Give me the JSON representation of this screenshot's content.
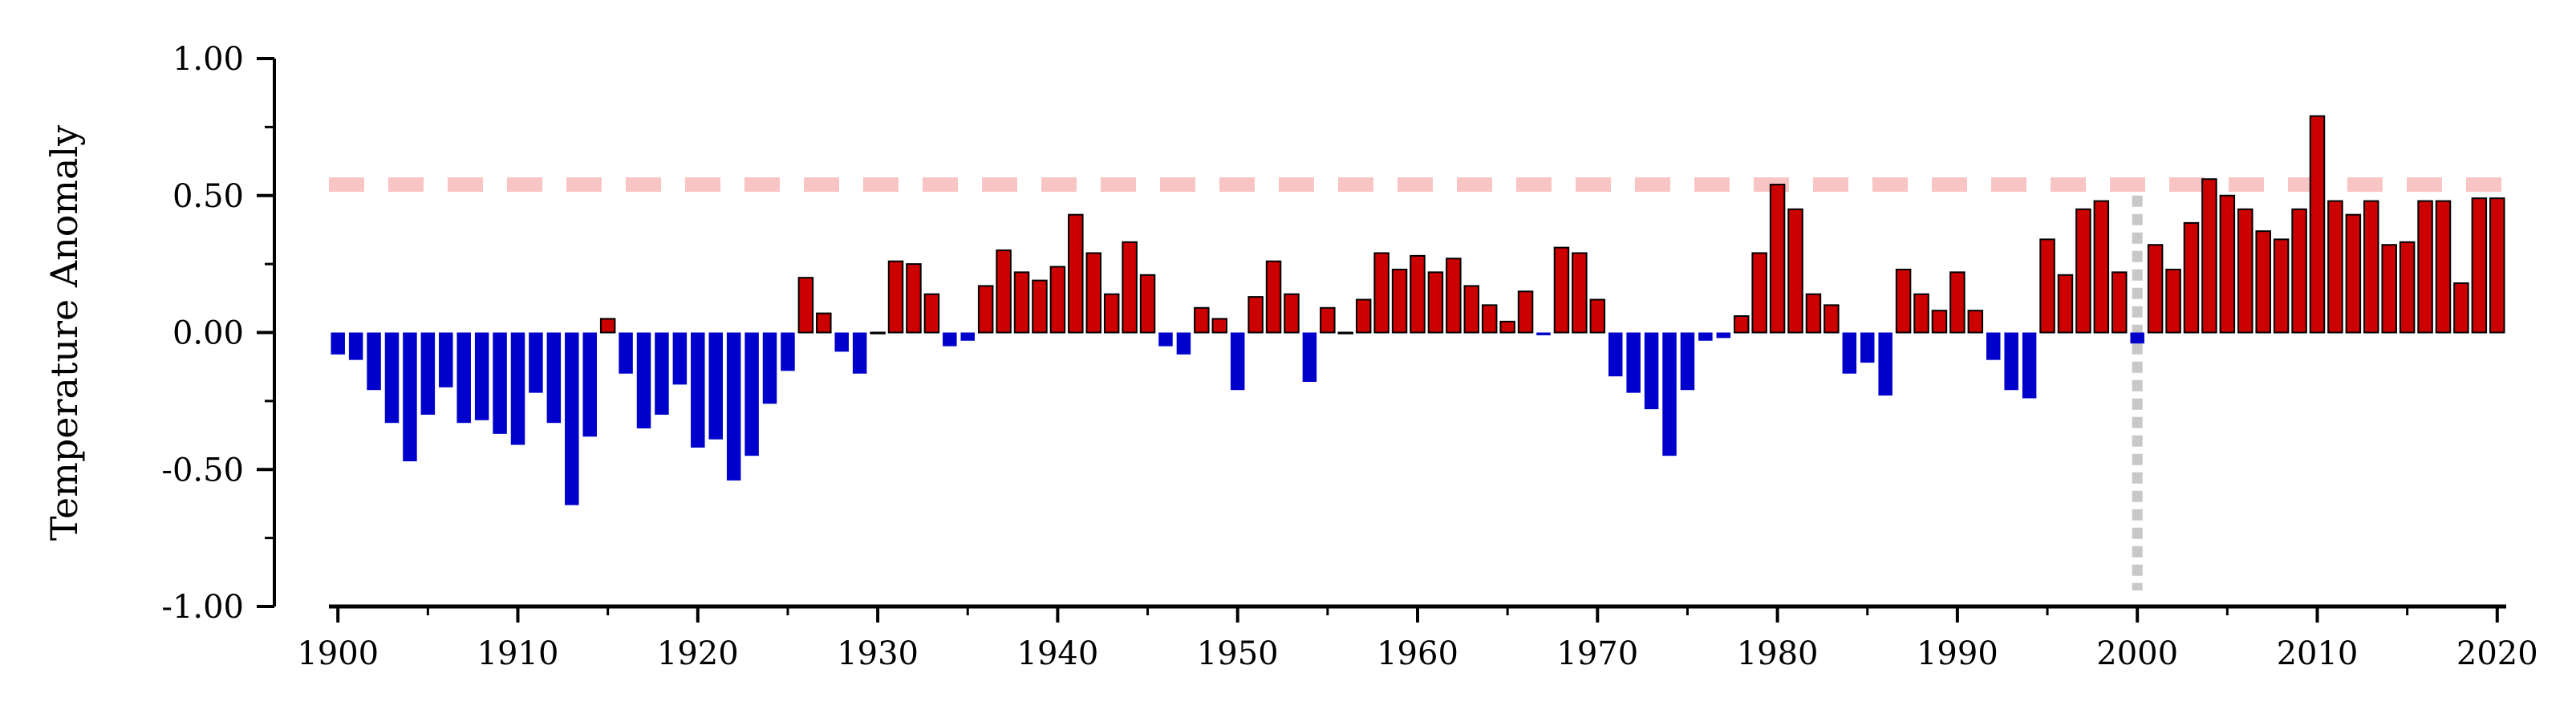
{
  "chart_data": {
    "type": "bar",
    "title": "",
    "xlabel": "",
    "ylabel": "Temperature Anomaly",
    "x_ticks": [
      1900,
      1910,
      1920,
      1930,
      1940,
      1950,
      1960,
      1970,
      1980,
      1990,
      2000,
      2010,
      2020
    ],
    "y_ticks": [
      "1.00",
      "0.50",
      "0.00",
      "-0.50",
      "-1.00"
    ],
    "ylim": [
      -1.0,
      1.0
    ],
    "xlim": [
      1899.5,
      2020.5
    ],
    "grid": false,
    "colors": {
      "positive": "#cc0000",
      "negative": "#0000cc",
      "reference_line": "#f9c4c4",
      "marker_line": "#c8c8c8"
    },
    "reference_line_value": 0.54,
    "vertical_marker_year": 2000,
    "series": [
      {
        "start_year": 1900,
        "values": [
          -0.08,
          -0.1,
          -0.21,
          -0.33,
          -0.47,
          -0.3,
          -0.2,
          -0.33,
          -0.32,
          -0.37,
          -0.41,
          -0.22,
          -0.33,
          -0.63,
          -0.38,
          0.05,
          -0.15,
          -0.35,
          -0.3,
          -0.19,
          -0.42,
          -0.39,
          -0.54,
          -0.45,
          -0.26,
          -0.14,
          0.2,
          0.07,
          -0.07,
          -0.15,
          0.0,
          0.26,
          0.25,
          0.14,
          -0.05,
          -0.03,
          0.17,
          0.3,
          0.22,
          0.19,
          0.24,
          0.43,
          0.29,
          0.14,
          0.33,
          0.21,
          -0.05,
          -0.08,
          0.09,
          0.05,
          -0.21,
          0.13,
          0.26,
          0.14,
          -0.18,
          0.09,
          0.0,
          0.12,
          0.29,
          0.23,
          0.28,
          0.22,
          0.27,
          0.17,
          0.1,
          0.04,
          0.15,
          -0.01,
          0.31,
          0.29,
          0.12,
          -0.16,
          -0.22,
          -0.28,
          -0.45,
          -0.21,
          -0.03,
          -0.02,
          0.06,
          0.29,
          0.54,
          0.45,
          0.14,
          0.1,
          -0.15,
          -0.11,
          -0.23,
          0.23,
          0.14,
          0.08,
          0.22,
          0.08,
          -0.1,
          -0.21,
          -0.24,
          0.34,
          0.21,
          0.45,
          0.48,
          0.22,
          -0.04,
          0.32,
          0.23,
          0.4,
          0.56,
          0.5,
          0.45,
          0.37,
          0.34,
          0.45,
          0.79,
          0.48,
          0.43,
          0.48,
          0.32,
          0.33,
          0.48,
          0.48,
          0.18,
          0.49,
          0.49
        ]
      }
    ]
  }
}
